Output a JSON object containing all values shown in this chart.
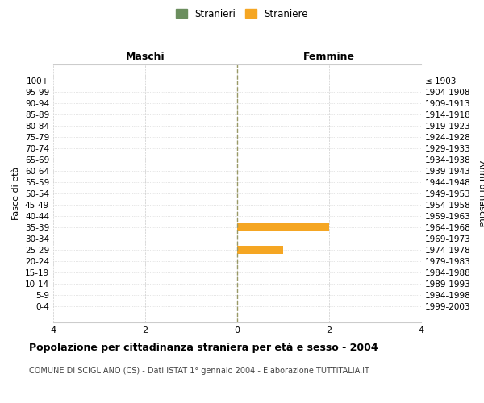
{
  "age_groups": [
    "100+",
    "95-99",
    "90-94",
    "85-89",
    "80-84",
    "75-79",
    "70-74",
    "65-69",
    "60-64",
    "55-59",
    "50-54",
    "45-49",
    "40-44",
    "35-39",
    "30-34",
    "25-29",
    "20-24",
    "15-19",
    "10-14",
    "5-9",
    "0-4"
  ],
  "birth_years": [
    "≤ 1903",
    "1904-1908",
    "1909-1913",
    "1914-1918",
    "1919-1923",
    "1924-1928",
    "1929-1933",
    "1934-1938",
    "1939-1943",
    "1944-1948",
    "1949-1953",
    "1954-1958",
    "1959-1963",
    "1964-1968",
    "1969-1973",
    "1974-1978",
    "1979-1983",
    "1984-1988",
    "1989-1993",
    "1994-1998",
    "1999-2003"
  ],
  "males": [
    0,
    0,
    0,
    0,
    0,
    0,
    0,
    0,
    0,
    0,
    0,
    0,
    0,
    0,
    0,
    0,
    0,
    0,
    0,
    0,
    0
  ],
  "females": [
    0,
    0,
    0,
    0,
    0,
    0,
    0,
    0,
    0,
    0,
    0,
    0,
    0,
    2,
    0,
    1,
    0,
    0,
    0,
    0,
    0
  ],
  "male_color": "#6b8e5e",
  "female_color": "#f5a623",
  "xlim": 4,
  "title": "Popolazione per cittadinanza straniera per età e sesso - 2004",
  "subtitle": "COMUNE DI SCIGLIANO (CS) - Dati ISTAT 1° gennaio 2004 - Elaborazione TUTTITALIA.IT",
  "ylabel_left": "Fasce di età",
  "ylabel_right": "Anni di nascita",
  "header_left": "Maschi",
  "header_right": "Femmine",
  "legend_male": "Stranieri",
  "legend_female": "Straniere",
  "bg_color": "#ffffff",
  "grid_color": "#cccccc",
  "center_line_color": "#999966",
  "bar_height": 0.75,
  "tick_fontsize": 7.5,
  "header_fontsize": 9
}
